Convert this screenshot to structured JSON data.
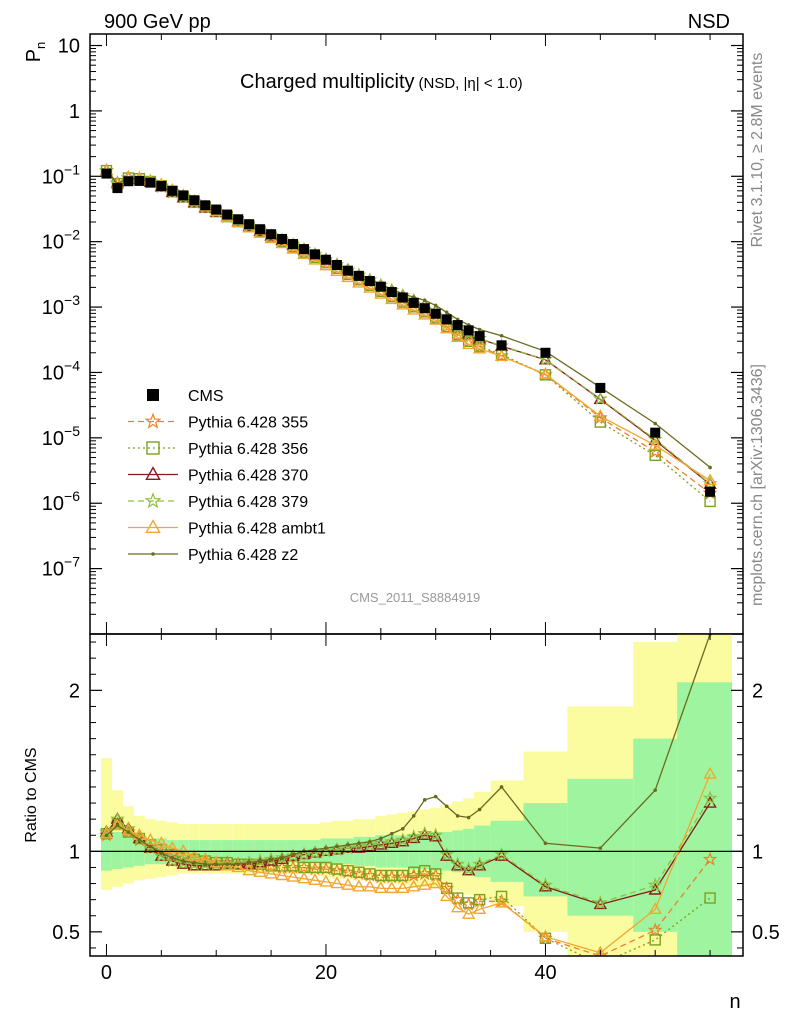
{
  "header": {
    "left": "900 GeV pp",
    "right": "NSD"
  },
  "plot_title": {
    "main": "Charged multiplicity",
    "sub": "(NSD, |η| < 1.0)"
  },
  "side_labels": {
    "top": "Rivet 3.1.10, ≥ 2.8M events",
    "bottom": "mcplots.cern.ch [arXiv:1306.3436]"
  },
  "analysis": "CMS_2011_S8884919",
  "chart_data": [
    {
      "type": "scatter",
      "panel": "main",
      "ylabel": "P_n",
      "yscale": "log",
      "ylim": [
        1e-08,
        15
      ],
      "xlim": [
        -1.5,
        58
      ],
      "yticks": [
        {
          "v": 10,
          "label": "10"
        },
        {
          "v": 1,
          "label": "1"
        },
        {
          "v": 0.1,
          "base": "10",
          "exp": "−1"
        },
        {
          "v": 0.01,
          "base": "10",
          "exp": "−2"
        },
        {
          "v": 0.001,
          "base": "10",
          "exp": "−3"
        },
        {
          "v": 0.0001,
          "base": "10",
          "exp": "−4"
        },
        {
          "v": 1e-05,
          "base": "10",
          "exp": "−5"
        },
        {
          "v": 1e-06,
          "base": "10",
          "exp": "−6"
        },
        {
          "v": 1e-07,
          "base": "10",
          "exp": "−7"
        }
      ],
      "legend_position": "middle-left",
      "series": [
        {
          "name": "CMS",
          "color": "#000000",
          "marker": "square",
          "line": "none",
          "x": [
            0,
            1,
            2,
            3,
            4,
            5,
            6,
            7,
            8,
            9,
            10,
            11,
            12,
            13,
            14,
            15,
            16,
            17,
            18,
            19,
            20,
            21,
            22,
            23,
            24,
            25,
            26,
            27,
            28,
            29,
            30,
            31,
            32,
            33,
            34,
            36,
            40,
            45,
            50,
            55
          ],
          "y": [
            0.11,
            0.066,
            0.084,
            0.085,
            0.08,
            0.071,
            0.06,
            0.051,
            0.043,
            0.036,
            0.031,
            0.026,
            0.022,
            0.0185,
            0.0155,
            0.013,
            0.011,
            0.0092,
            0.0077,
            0.0064,
            0.0053,
            0.0044,
            0.0036,
            0.003,
            0.0025,
            0.00205,
            0.0017,
            0.0014,
            0.00116,
            0.00096,
            0.00079,
            0.00065,
            0.00053,
            0.00044,
            0.00036,
            0.00026,
            0.0002,
            5.8e-05,
            1.2e-05,
            1.5e-06
          ]
        },
        {
          "name": "Pythia 6.428 355",
          "color": "#f07f26",
          "marker": "star",
          "line": "dashed"
        },
        {
          "name": "Pythia 6.428 356",
          "color": "#7f9f1f",
          "marker": "open-square",
          "line": "dotted"
        },
        {
          "name": "Pythia 6.428 370",
          "color": "#8b1a1a",
          "marker": "open-triangle",
          "line": "solid"
        },
        {
          "name": "Pythia 6.428 379",
          "color": "#8fbf3f",
          "marker": "star",
          "line": "dashed"
        },
        {
          "name": "Pythia 6.428 ambt1",
          "color": "#f0a830",
          "marker": "open-triangle",
          "line": "solid"
        },
        {
          "name": "Pythia 6.428 z2",
          "color": "#6b6b1f",
          "marker": "dot",
          "line": "solid"
        }
      ]
    },
    {
      "type": "line",
      "panel": "ratio",
      "ylabel": "Ratio to CMS",
      "xlabel": "n",
      "ylim": [
        0.35,
        2.35
      ],
      "xticks": [
        0,
        20,
        40
      ],
      "yticks": [
        0.5,
        1,
        2
      ],
      "bands": {
        "x_edges": [
          -0.5,
          0.5,
          1.5,
          2.5,
          3.5,
          4.5,
          5.5,
          6.5,
          7.5,
          8.5,
          9.5,
          10.5,
          11.5,
          12.5,
          13.5,
          14.5,
          15.5,
          16.5,
          17.5,
          18.5,
          19.5,
          20.5,
          21.5,
          22.5,
          23.5,
          24.5,
          25.5,
          26.5,
          27.5,
          28.5,
          29.5,
          30.5,
          31.5,
          32.5,
          33.5,
          35,
          38,
          42,
          48,
          52,
          57
        ],
        "inner_color": "#9ff59f",
        "outer_color": "#fbfb9f",
        "inner_lo": [
          0.88,
          0.89,
          0.9,
          0.91,
          0.92,
          0.92,
          0.93,
          0.93,
          0.93,
          0.93,
          0.93,
          0.93,
          0.93,
          0.93,
          0.93,
          0.93,
          0.93,
          0.93,
          0.93,
          0.93,
          0.92,
          0.92,
          0.92,
          0.91,
          0.91,
          0.9,
          0.9,
          0.9,
          0.89,
          0.89,
          0.88,
          0.88,
          0.87,
          0.86,
          0.84,
          0.81,
          0.72,
          0.6,
          0.5,
          0.35
        ],
        "inner_hi": [
          1.14,
          1.12,
          1.1,
          1.09,
          1.08,
          1.08,
          1.07,
          1.07,
          1.07,
          1.07,
          1.07,
          1.07,
          1.07,
          1.07,
          1.07,
          1.07,
          1.07,
          1.07,
          1.07,
          1.07,
          1.08,
          1.08,
          1.08,
          1.09,
          1.09,
          1.1,
          1.1,
          1.1,
          1.11,
          1.11,
          1.12,
          1.12,
          1.13,
          1.14,
          1.16,
          1.19,
          1.3,
          1.45,
          1.7,
          2.05
        ],
        "outer_lo": [
          0.76,
          0.78,
          0.8,
          0.82,
          0.83,
          0.84,
          0.85,
          0.86,
          0.86,
          0.86,
          0.86,
          0.86,
          0.86,
          0.86,
          0.86,
          0.86,
          0.86,
          0.86,
          0.86,
          0.85,
          0.84,
          0.83,
          0.83,
          0.82,
          0.82,
          0.8,
          0.8,
          0.79,
          0.78,
          0.78,
          0.77,
          0.76,
          0.75,
          0.73,
          0.7,
          0.66,
          0.5,
          0.35,
          0.35,
          0.35
        ],
        "outer_hi": [
          1.58,
          1.38,
          1.28,
          1.22,
          1.2,
          1.19,
          1.18,
          1.17,
          1.17,
          1.17,
          1.17,
          1.17,
          1.17,
          1.17,
          1.17,
          1.17,
          1.17,
          1.17,
          1.17,
          1.17,
          1.18,
          1.19,
          1.19,
          1.2,
          1.2,
          1.22,
          1.23,
          1.24,
          1.25,
          1.26,
          1.27,
          1.29,
          1.31,
          1.33,
          1.37,
          1.44,
          1.62,
          1.9,
          2.3,
          2.35
        ]
      },
      "series": [
        {
          "name": "Pythia 6.428 355",
          "color": "#f07f26",
          "marker": "star",
          "line": "dashed",
          "x": [
            0,
            1,
            2,
            3,
            4,
            5,
            6,
            7,
            8,
            9,
            10,
            11,
            12,
            13,
            14,
            15,
            16,
            17,
            18,
            19,
            20,
            21,
            22,
            23,
            24,
            25,
            26,
            27,
            28,
            29,
            30,
            31,
            32,
            33,
            34,
            36,
            40,
            45,
            50,
            55
          ],
          "y": [
            1.1,
            1.17,
            1.12,
            1.07,
            1.03,
            1.0,
            0.98,
            0.96,
            0.95,
            0.94,
            0.93,
            0.93,
            0.92,
            0.92,
            0.91,
            0.91,
            0.9,
            0.9,
            0.9,
            0.89,
            0.89,
            0.88,
            0.87,
            0.86,
            0.85,
            0.84,
            0.84,
            0.84,
            0.85,
            0.86,
            0.85,
            0.77,
            0.7,
            0.67,
            0.69,
            0.69,
            0.46,
            0.35,
            0.51,
            0.95
          ]
        },
        {
          "name": "Pythia 6.428 356",
          "color": "#7f9f1f",
          "marker": "open-square",
          "line": "dotted",
          "x": [
            0,
            1,
            2,
            3,
            4,
            5,
            6,
            7,
            8,
            9,
            10,
            11,
            12,
            13,
            14,
            15,
            16,
            17,
            18,
            19,
            20,
            21,
            22,
            23,
            24,
            25,
            26,
            27,
            28,
            29,
            30,
            31,
            32,
            33,
            34,
            36,
            40,
            45,
            50,
            55
          ],
          "y": [
            1.11,
            1.17,
            1.12,
            1.08,
            1.04,
            1.01,
            0.98,
            0.96,
            0.95,
            0.94,
            0.93,
            0.93,
            0.92,
            0.92,
            0.92,
            0.91,
            0.91,
            0.91,
            0.9,
            0.9,
            0.9,
            0.89,
            0.88,
            0.87,
            0.86,
            0.85,
            0.85,
            0.85,
            0.87,
            0.88,
            0.86,
            0.77,
            0.71,
            0.68,
            0.7,
            0.72,
            0.46,
            0.3,
            0.45,
            0.71
          ]
        },
        {
          "name": "Pythia 6.428 370",
          "color": "#8b1a1a",
          "marker": "open-triangle",
          "line": "solid",
          "x": [
            0,
            1,
            2,
            3,
            4,
            5,
            6,
            7,
            8,
            9,
            10,
            11,
            12,
            13,
            14,
            15,
            16,
            17,
            18,
            19,
            20,
            21,
            22,
            23,
            24,
            25,
            26,
            27,
            28,
            29,
            30,
            31,
            32,
            33,
            34,
            36,
            40,
            45,
            50,
            55
          ],
          "y": [
            1.12,
            1.2,
            1.14,
            1.08,
            1.02,
            0.97,
            0.94,
            0.92,
            0.91,
            0.91,
            0.91,
            0.92,
            0.92,
            0.92,
            0.93,
            0.94,
            0.95,
            0.97,
            0.98,
            0.99,
            1.0,
            1.01,
            1.02,
            1.02,
            1.03,
            1.04,
            1.05,
            1.06,
            1.08,
            1.1,
            1.09,
            0.97,
            0.91,
            0.88,
            0.91,
            0.97,
            0.78,
            0.67,
            0.76,
            1.3
          ]
        },
        {
          "name": "Pythia 6.428 379",
          "color": "#8fbf3f",
          "marker": "star",
          "line": "dashed",
          "x": [
            0,
            1,
            2,
            3,
            4,
            5,
            6,
            7,
            8,
            9,
            10,
            11,
            12,
            13,
            14,
            15,
            16,
            17,
            18,
            19,
            20,
            21,
            22,
            23,
            24,
            25,
            26,
            27,
            28,
            29,
            30,
            31,
            32,
            33,
            34,
            36,
            40,
            45,
            50,
            55
          ],
          "y": [
            1.12,
            1.2,
            1.14,
            1.08,
            1.02,
            0.97,
            0.94,
            0.93,
            0.92,
            0.92,
            0.92,
            0.92,
            0.92,
            0.93,
            0.94,
            0.95,
            0.96,
            0.97,
            0.98,
            0.99,
            1.0,
            1.01,
            1.02,
            1.03,
            1.04,
            1.05,
            1.06,
            1.07,
            1.09,
            1.11,
            1.1,
            0.98,
            0.92,
            0.89,
            0.92,
            0.98,
            0.79,
            0.68,
            0.79,
            1.33
          ]
        },
        {
          "name": "Pythia 6.428 ambt1",
          "color": "#f0a830",
          "marker": "open-triangle",
          "line": "solid",
          "x": [
            0,
            1,
            2,
            3,
            4,
            5,
            6,
            7,
            8,
            9,
            10,
            11,
            12,
            13,
            14,
            15,
            16,
            17,
            18,
            19,
            20,
            21,
            22,
            23,
            24,
            25,
            26,
            27,
            28,
            29,
            30,
            31,
            32,
            33,
            34,
            36,
            40,
            45,
            50,
            55
          ],
          "y": [
            1.11,
            1.16,
            1.13,
            1.1,
            1.07,
            1.05,
            1.02,
            1.0,
            0.97,
            0.95,
            0.93,
            0.91,
            0.9,
            0.88,
            0.87,
            0.86,
            0.85,
            0.84,
            0.83,
            0.82,
            0.81,
            0.8,
            0.79,
            0.78,
            0.78,
            0.77,
            0.77,
            0.77,
            0.78,
            0.79,
            0.8,
            0.72,
            0.65,
            0.61,
            0.64,
            0.68,
            0.47,
            0.37,
            0.64,
            1.48
          ]
        },
        {
          "name": "Pythia 6.428 z2",
          "color": "#6b6b1f",
          "marker": "dot",
          "line": "solid",
          "x": [
            0,
            1,
            2,
            3,
            4,
            5,
            6,
            7,
            8,
            9,
            10,
            11,
            12,
            13,
            14,
            15,
            16,
            17,
            18,
            19,
            20,
            21,
            22,
            23,
            24,
            25,
            26,
            27,
            28,
            29,
            30,
            31,
            32,
            33,
            34,
            36,
            40,
            45,
            50,
            55
          ],
          "y": [
            1.1,
            1.16,
            1.12,
            1.07,
            1.03,
            0.99,
            0.96,
            0.94,
            0.93,
            0.92,
            0.92,
            0.92,
            0.92,
            0.93,
            0.94,
            0.95,
            0.96,
            0.98,
            1.0,
            1.01,
            1.02,
            1.03,
            1.04,
            1.05,
            1.06,
            1.08,
            1.11,
            1.14,
            1.22,
            1.32,
            1.34,
            1.28,
            1.22,
            1.21,
            1.26,
            1.4,
            1.05,
            1.02,
            1.38,
            2.35
          ]
        }
      ]
    }
  ]
}
